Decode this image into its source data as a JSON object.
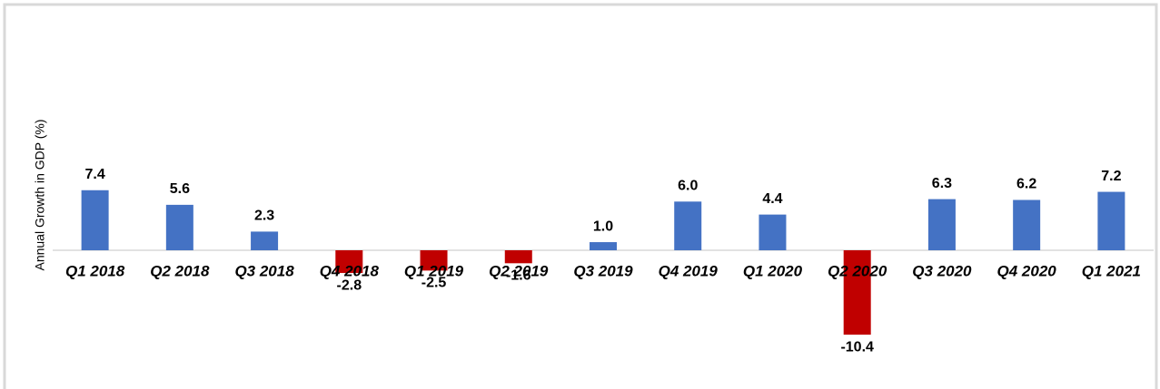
{
  "chart_data": {
    "type": "bar",
    "y_axis_label": "Annual Growth in GDP (%)",
    "categories": [
      "Q1 2018",
      "Q2 2018",
      "Q3 2018",
      "Q4 2018",
      "Q1 2019",
      "Q2 2019",
      "Q3 2019",
      "Q4 2019",
      "Q1 2020",
      "Q2 2020",
      "Q3 2020",
      "Q4 2020",
      "Q1 2021"
    ],
    "values": [
      7.4,
      5.6,
      2.3,
      -2.8,
      -2.5,
      -1.6,
      1.0,
      6.0,
      4.4,
      -10.4,
      6.3,
      6.2,
      7.2
    ],
    "value_labels": [
      "7.4",
      "5.6",
      "2.3",
      "-2.8",
      "-2.5",
      "-1.6",
      "1.0",
      "6.0",
      "4.4",
      "-10.4",
      "6.3",
      "6.2",
      "7.2"
    ],
    "color": "#4472c4",
    "negative_color": "#c00000"
  }
}
